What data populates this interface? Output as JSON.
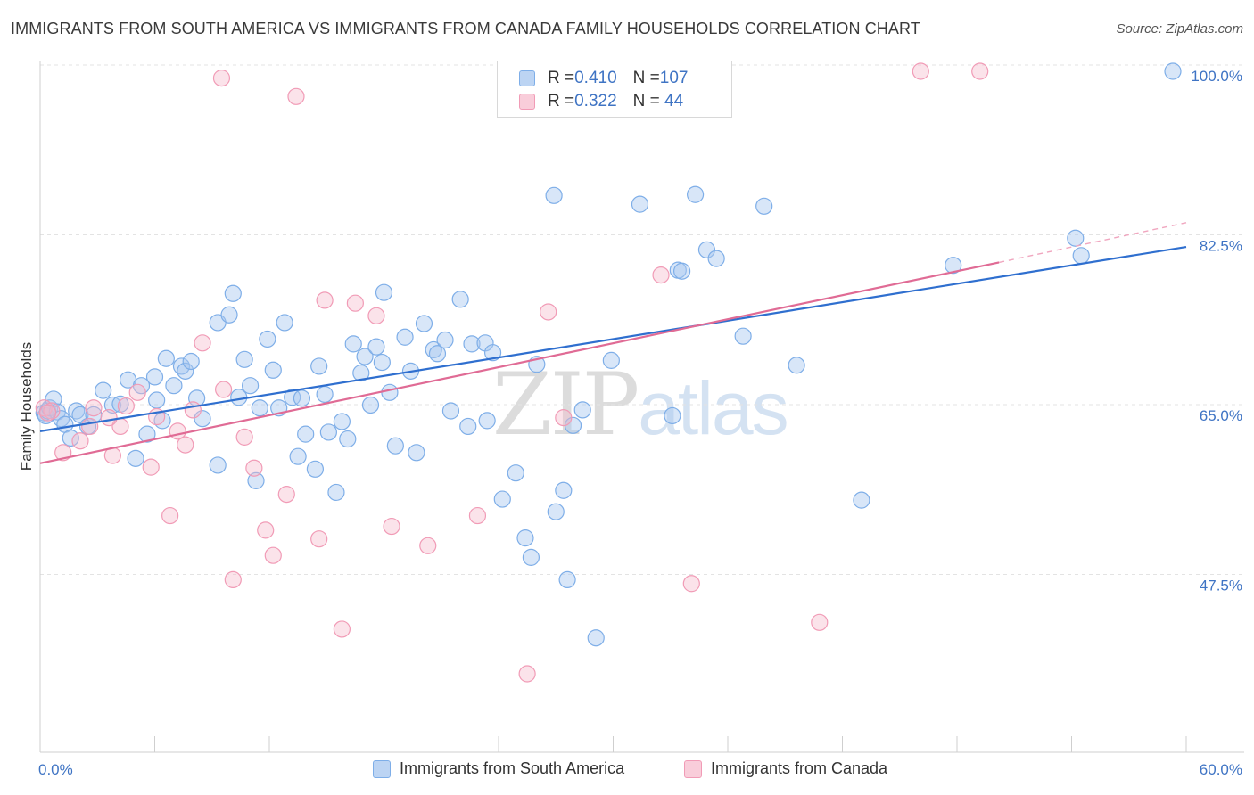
{
  "title": "IMMIGRANTS FROM SOUTH AMERICA VS IMMIGRANTS FROM CANADA FAMILY HOUSEHOLDS CORRELATION CHART",
  "source": "Source: ZipAtlas.com",
  "watermark": {
    "zip": "ZIP",
    "atlas": "atlas"
  },
  "legend_top": {
    "rows": [
      {
        "r_label": "R = ",
        "r_value": "0.410",
        "n_label": "N = ",
        "n_value": "107",
        "color": "#a8c8f0"
      },
      {
        "r_label": "R = ",
        "r_value": "0.322",
        "n_label": "N = ",
        "n_value": " 44",
        "color": "#f5b8cb"
      }
    ]
  },
  "legend_bottom": [
    {
      "label": "Immigrants from South America",
      "color": "#a8c8f0"
    },
    {
      "label": "Immigrants from Canada",
      "color": "#f5b8cb"
    }
  ],
  "chart_data": {
    "type": "scatter",
    "title": "IMMIGRANTS FROM SOUTH AMERICA VS IMMIGRANTS FROM CANADA FAMILY HOUSEHOLDS CORRELATION CHART",
    "xlabel": "",
    "ylabel": "Family Households",
    "xlim": [
      0,
      60
    ],
    "ylim": [
      30,
      101.5
    ],
    "x_tick_labels": [
      "0.0%",
      "60.0%"
    ],
    "y_ticks": [
      47.5,
      65.0,
      82.5,
      100.0
    ],
    "y_tick_labels": [
      "47.5%",
      "65.0%",
      "82.5%",
      "100.0%"
    ],
    "grid": "horizontal dashed",
    "legend_position": "top-center",
    "series": [
      {
        "name": "Immigrants from South America",
        "color": "#7eaee8",
        "R": 0.41,
        "N": 107,
        "trend": {
          "x": [
            0,
            60
          ],
          "y": [
            62.9,
            81.9
          ],
          "dashed_after": null
        },
        "points": [
          [
            0.2,
            64.8
          ],
          [
            0.3,
            64.5
          ],
          [
            0.4,
            65.0
          ],
          [
            0.5,
            65.3
          ],
          [
            0.7,
            66.2
          ],
          [
            0.9,
            64.9
          ],
          [
            1.1,
            64.2
          ],
          [
            1.3,
            63.6
          ],
          [
            1.6,
            62.2
          ],
          [
            1.9,
            65.0
          ],
          [
            2.1,
            64.6
          ],
          [
            2.5,
            63.4
          ],
          [
            2.8,
            64.6
          ],
          [
            3.3,
            67.1
          ],
          [
            3.8,
            65.6
          ],
          [
            4.2,
            65.7
          ],
          [
            4.6,
            68.2
          ],
          [
            5.0,
            60.1
          ],
          [
            5.3,
            67.6
          ],
          [
            5.6,
            62.6
          ],
          [
            6.0,
            68.5
          ],
          [
            6.1,
            66.1
          ],
          [
            6.4,
            64.0
          ],
          [
            6.6,
            70.4
          ],
          [
            7.0,
            67.6
          ],
          [
            7.4,
            69.6
          ],
          [
            7.6,
            69.1
          ],
          [
            7.9,
            70.1
          ],
          [
            8.2,
            66.3
          ],
          [
            8.5,
            64.2
          ],
          [
            9.3,
            59.4
          ],
          [
            9.3,
            74.1
          ],
          [
            9.9,
            74.9
          ],
          [
            10.1,
            77.1
          ],
          [
            10.4,
            66.4
          ],
          [
            10.7,
            70.3
          ],
          [
            11.0,
            67.6
          ],
          [
            11.3,
            57.8
          ],
          [
            11.5,
            65.3
          ],
          [
            11.9,
            72.4
          ],
          [
            12.2,
            69.2
          ],
          [
            12.5,
            65.3
          ],
          [
            12.8,
            74.1
          ],
          [
            13.2,
            66.4
          ],
          [
            13.5,
            60.3
          ],
          [
            13.7,
            66.3
          ],
          [
            13.9,
            62.6
          ],
          [
            14.4,
            59.0
          ],
          [
            14.6,
            69.6
          ],
          [
            14.9,
            66.7
          ],
          [
            15.1,
            62.8
          ],
          [
            15.5,
            56.6
          ],
          [
            15.8,
            63.9
          ],
          [
            16.1,
            62.1
          ],
          [
            16.4,
            71.9
          ],
          [
            16.8,
            68.9
          ],
          [
            17.0,
            70.6
          ],
          [
            17.3,
            65.6
          ],
          [
            17.6,
            71.6
          ],
          [
            17.9,
            70.0
          ],
          [
            18.0,
            77.2
          ],
          [
            18.3,
            66.9
          ],
          [
            18.6,
            61.4
          ],
          [
            19.1,
            72.6
          ],
          [
            19.4,
            69.1
          ],
          [
            19.7,
            60.7
          ],
          [
            20.1,
            74.0
          ],
          [
            20.6,
            71.3
          ],
          [
            20.8,
            70.9
          ],
          [
            21.2,
            72.3
          ],
          [
            21.5,
            65.0
          ],
          [
            22.0,
            76.5
          ],
          [
            22.4,
            63.4
          ],
          [
            22.6,
            71.9
          ],
          [
            23.3,
            72.0
          ],
          [
            23.4,
            64.0
          ],
          [
            23.7,
            71.0
          ],
          [
            24.2,
            55.9
          ],
          [
            24.9,
            58.6
          ],
          [
            25.4,
            51.9
          ],
          [
            25.7,
            49.9
          ],
          [
            26.0,
            69.8
          ],
          [
            26.9,
            87.2
          ],
          [
            27.0,
            54.6
          ],
          [
            27.4,
            56.8
          ],
          [
            27.6,
            47.6
          ],
          [
            27.9,
            63.5
          ],
          [
            28.4,
            65.1
          ],
          [
            29.1,
            41.6
          ],
          [
            29.9,
            70.2
          ],
          [
            31.4,
            86.3
          ],
          [
            33.1,
            64.5
          ],
          [
            33.4,
            79.5
          ],
          [
            33.6,
            79.4
          ],
          [
            34.3,
            87.3
          ],
          [
            34.9,
            81.6
          ],
          [
            35.4,
            80.7
          ],
          [
            36.8,
            72.7
          ],
          [
            37.9,
            86.1
          ],
          [
            39.6,
            69.7
          ],
          [
            43.0,
            55.8
          ],
          [
            47.8,
            80.0
          ],
          [
            54.2,
            82.8
          ],
          [
            54.5,
            81.0
          ],
          [
            59.3,
            100.0
          ]
        ]
      },
      {
        "name": "Immigrants from Canada",
        "color": "#f19bb6",
        "R": 0.322,
        "N": 44,
        "trend": {
          "x": [
            0,
            50.2
          ],
          "y": [
            59.6,
            80.3
          ],
          "dashed_after": 50.2,
          "dashed_to": [
            60,
            84.4
          ]
        },
        "points": [
          [
            0.2,
            65.3
          ],
          [
            0.6,
            65.0
          ],
          [
            1.2,
            60.7
          ],
          [
            2.1,
            61.9
          ],
          [
            2.6,
            63.4
          ],
          [
            2.8,
            65.3
          ],
          [
            3.8,
            60.4
          ],
          [
            4.2,
            63.4
          ],
          [
            4.5,
            65.5
          ],
          [
            5.1,
            66.9
          ],
          [
            5.8,
            59.2
          ],
          [
            6.1,
            64.4
          ],
          [
            6.8,
            54.2
          ],
          [
            7.2,
            62.9
          ],
          [
            7.6,
            61.5
          ],
          [
            8.0,
            65.1
          ],
          [
            8.5,
            72.0
          ],
          [
            9.5,
            99.3
          ],
          [
            9.6,
            67.2
          ],
          [
            10.1,
            47.6
          ],
          [
            10.7,
            62.3
          ],
          [
            11.2,
            59.1
          ],
          [
            11.8,
            52.7
          ],
          [
            12.2,
            50.1
          ],
          [
            12.9,
            56.4
          ],
          [
            13.4,
            97.4
          ],
          [
            14.6,
            51.8
          ],
          [
            14.9,
            76.4
          ],
          [
            15.8,
            42.5
          ],
          [
            16.5,
            76.1
          ],
          [
            17.6,
            74.8
          ],
          [
            18.4,
            53.1
          ],
          [
            20.3,
            51.1
          ],
          [
            22.9,
            54.2
          ],
          [
            25.5,
            37.9
          ],
          [
            26.6,
            75.2
          ],
          [
            32.5,
            79.0
          ],
          [
            34.1,
            47.2
          ],
          [
            40.8,
            43.2
          ],
          [
            46.1,
            100.0
          ],
          [
            49.2,
            100.0
          ],
          [
            27.4,
            64.3
          ],
          [
            0.4,
            64.8
          ],
          [
            3.6,
            64.3
          ]
        ]
      }
    ]
  }
}
